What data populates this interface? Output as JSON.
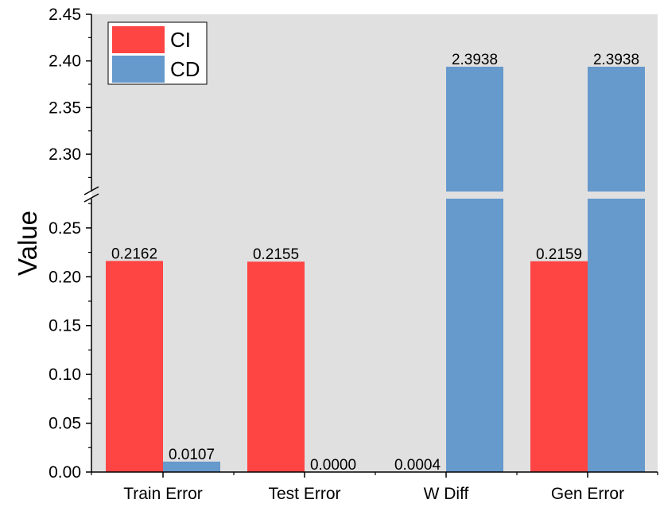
{
  "chart_data": {
    "type": "bar",
    "title": "",
    "xlabel": "",
    "ylabel": "Value",
    "categories": [
      "Train Error",
      "Test Error",
      "W Diff",
      "Gen Error"
    ],
    "series": [
      {
        "name": "CI",
        "color": "#ff4444",
        "values": [
          0.2162,
          0.2155,
          0.0,
          0.2159
        ],
        "labels": [
          "0.2162",
          "0.2155",
          "",
          "0.2159"
        ]
      },
      {
        "name": "CD",
        "color": "#6699cc",
        "values": [
          0.0107,
          0.0,
          2.3938,
          2.3938
        ],
        "labels": [
          "0.0107",
          "0.0000",
          "2.3938",
          "2.3938"
        ]
      }
    ],
    "extra_labels": [
      {
        "category_index": 2,
        "text": "0.0004"
      }
    ],
    "axis_break": {
      "lower_range": [
        0.0,
        0.28
      ],
      "upper_range": [
        2.26,
        2.45
      ]
    },
    "lower_ticks": [
      "0.00",
      "0.05",
      "0.10",
      "0.15",
      "0.20",
      "0.25"
    ],
    "upper_ticks": [
      "2.30",
      "2.35",
      "2.40",
      "2.45"
    ],
    "background_color": "#e0e0e0",
    "grid": false,
    "legend_position": "top-left"
  }
}
